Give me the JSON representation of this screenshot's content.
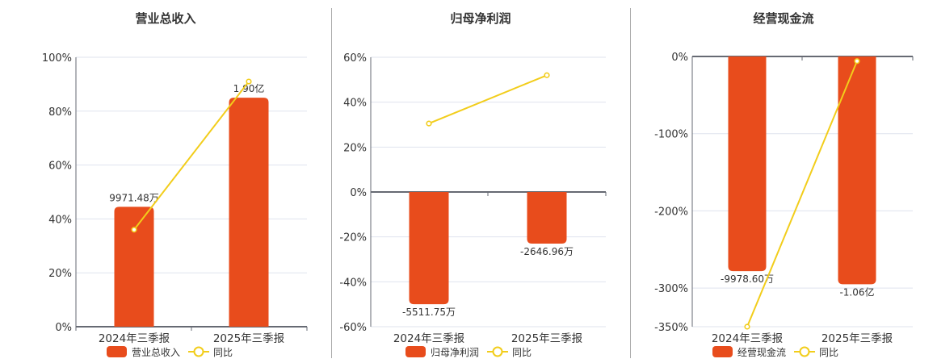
{
  "colors": {
    "bar": "#e84c1c",
    "line": "#f2cd1b",
    "grid": "#dfe3ee",
    "axis": "#666a73"
  },
  "panels": [
    {
      "title": "营业总收入",
      "legend": {
        "bar": "营业总收入",
        "line": "同比"
      }
    },
    {
      "title": "归母净利润",
      "legend": {
        "bar": "归母净利润",
        "line": "同比"
      }
    },
    {
      "title": "经营现金流",
      "legend": {
        "bar": "经营现金流",
        "line": "同比"
      }
    }
  ],
  "chart_data": [
    {
      "type": "bar",
      "title": "营业总收入",
      "categories": [
        "2024年三季报",
        "2025年三季报"
      ],
      "series": [
        {
          "name": "营业总收入",
          "type": "bar",
          "values": [
            9971.48,
            19000
          ],
          "unit": "万元",
          "labels": [
            "9971.48万",
            "1.90亿"
          ],
          "bar_height_pct": [
            44.5,
            85
          ]
        },
        {
          "name": "同比",
          "type": "line",
          "values": [
            36,
            91
          ],
          "unit": "%"
        }
      ],
      "yaxis_ticks": [
        "0%",
        "20%",
        "40%",
        "60%",
        "80%",
        "100%"
      ],
      "ylim": [
        0,
        100
      ],
      "grid": true,
      "legend_position": "bottom"
    },
    {
      "type": "bar",
      "title": "归母净利润",
      "categories": [
        "2024年三季报",
        "2025年三季报"
      ],
      "series": [
        {
          "name": "归母净利润",
          "type": "bar",
          "values": [
            -5511.75,
            -2646.96
          ],
          "unit": "万元",
          "labels": [
            "-5511.75万",
            "-2646.96万"
          ],
          "bar_height_pct": [
            -50,
            -23
          ]
        },
        {
          "name": "同比",
          "type": "line",
          "values": [
            30.5,
            52
          ],
          "unit": "%"
        }
      ],
      "yaxis_ticks": [
        "-60%",
        "-40%",
        "-20%",
        "0%",
        "20%",
        "40%",
        "60%"
      ],
      "ylim": [
        -60,
        60
      ],
      "grid": true,
      "legend_position": "bottom"
    },
    {
      "type": "bar",
      "title": "经营现金流",
      "categories": [
        "2024年三季报",
        "2025年三季报"
      ],
      "series": [
        {
          "name": "经营现金流",
          "type": "bar",
          "values": [
            -9978.6,
            -10600
          ],
          "unit": "万元",
          "labels": [
            "-9978.60万",
            "-1.06亿"
          ],
          "bar_height_pct": [
            -278,
            -295
          ]
        },
        {
          "name": "同比",
          "type": "line",
          "values": [
            -350,
            -6
          ],
          "unit": "%"
        }
      ],
      "yaxis_ticks": [
        "-350%",
        "-300%",
        "-200%",
        "-100%",
        "0%"
      ],
      "ylim": [
        -350,
        0
      ],
      "grid": true,
      "legend_position": "bottom"
    }
  ]
}
